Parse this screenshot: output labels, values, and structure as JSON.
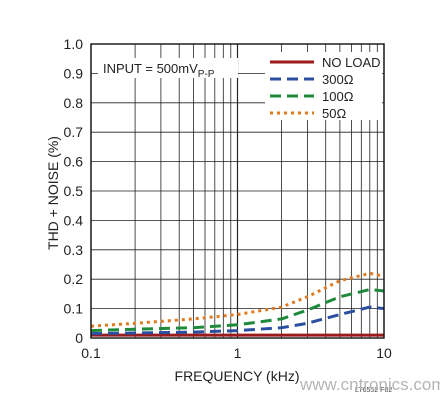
{
  "chart_data": {
    "type": "line",
    "xscale": "log",
    "xlim": [
      0.1,
      10
    ],
    "ylim": [
      0,
      1.0
    ],
    "xlabel": "FREQUENCY (kHz)",
    "ylabel": "THD + NOISE (%)",
    "xticks": [
      "0.1",
      "1",
      "10"
    ],
    "yticks": [
      "0",
      "0.1",
      "0.2",
      "0.3",
      "0.4",
      "0.5",
      "0.6",
      "0.7",
      "0.8",
      "0.9",
      "1.0"
    ],
    "grid": true,
    "legend_position": "top-right",
    "annotation": {
      "main": "INPUT = 500mV",
      "sub": "P-P"
    },
    "series": [
      {
        "name": "NO LOAD",
        "color": "#9b1a1a",
        "dash": "solid",
        "x": [
          0.1,
          0.2,
          0.5,
          1,
          2,
          5,
          10
        ],
        "y": [
          0.01,
          0.01,
          0.01,
          0.01,
          0.01,
          0.01,
          0.01
        ]
      },
      {
        "name": "300Ω",
        "color": "#2b4ea0",
        "dash": "dash",
        "x": [
          0.1,
          0.2,
          0.5,
          1,
          2,
          3,
          5,
          8,
          10
        ],
        "y": [
          0.015,
          0.017,
          0.02,
          0.025,
          0.035,
          0.05,
          0.08,
          0.105,
          0.1
        ]
      },
      {
        "name": "100Ω",
        "color": "#1f8a3c",
        "dash": "dash",
        "x": [
          0.1,
          0.2,
          0.5,
          1,
          2,
          3,
          5,
          8,
          10
        ],
        "y": [
          0.025,
          0.03,
          0.035,
          0.045,
          0.065,
          0.095,
          0.14,
          0.165,
          0.16
        ]
      },
      {
        "name": "50Ω",
        "color": "#e07a1f",
        "dash": "dot",
        "x": [
          0.1,
          0.2,
          0.5,
          1,
          2,
          3,
          5,
          8,
          10
        ],
        "y": [
          0.04,
          0.05,
          0.065,
          0.08,
          0.105,
          0.14,
          0.195,
          0.22,
          0.21
        ]
      }
    ]
  },
  "figure_id": "LT6552 F02",
  "watermark": "www.cntronics.com"
}
